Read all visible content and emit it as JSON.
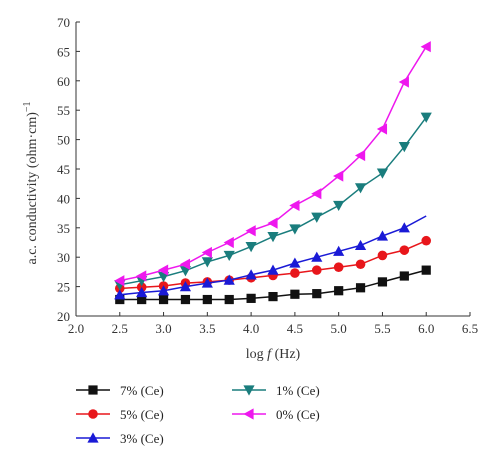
{
  "chart_data": {
    "type": "line",
    "x": [
      2.5,
      2.75,
      3.0,
      3.25,
      3.5,
      3.75,
      4.0,
      4.25,
      4.5,
      4.75,
      5.0,
      5.25,
      5.5,
      5.75,
      6.0
    ],
    "xlim": [
      2.0,
      6.5
    ],
    "ylim": [
      20,
      70
    ],
    "xticks": [
      "2.0",
      "2.5",
      "3.0",
      "3.5",
      "4.0",
      "4.5",
      "5.0",
      "5.5",
      "6.0",
      "6.5"
    ],
    "yticks": [
      "20",
      "25",
      "30",
      "35",
      "40",
      "45",
      "50",
      "55",
      "60",
      "65",
      "70"
    ],
    "xlabel_main": "log ",
    "xlabel_var": "f",
    "xlabel_unit": " (Hz)",
    "ylabel": "a.c. conductivity (ohm·cm)",
    "ylabel_sup": "−1",
    "grid": false,
    "legend_position": "bottom",
    "series": [
      {
        "name": "7% (Ce)",
        "color": "#111111",
        "marker": "square",
        "values": [
          22.8,
          22.8,
          22.8,
          22.8,
          22.8,
          22.8,
          23.0,
          23.3,
          23.7,
          23.8,
          24.3,
          24.8,
          25.8,
          26.8,
          27.8
        ]
      },
      {
        "name": "5% (Ce)",
        "color": "#e8161b",
        "marker": "circle",
        "values": [
          24.7,
          24.9,
          25.1,
          25.6,
          25.8,
          26.1,
          26.5,
          26.9,
          27.3,
          27.8,
          28.3,
          28.8,
          30.3,
          31.2,
          32.8
        ]
      },
      {
        "name": "3% (Ce)",
        "color": "#1a1ad6",
        "marker": "triangle-up",
        "values": [
          23.6,
          24.0,
          24.3,
          25.0,
          25.6,
          26.1,
          27.0,
          27.8,
          29.0,
          30.0,
          31.0,
          32.0,
          33.6,
          35.0,
          37.0
        ]
      },
      {
        "name": "1% (Ce)",
        "color": "#1a7d7d",
        "marker": "triangle-down",
        "values": [
          25.3,
          26.0,
          26.7,
          27.7,
          29.2,
          30.3,
          31.8,
          33.5,
          34.8,
          36.8,
          38.8,
          41.8,
          44.3,
          48.8,
          53.8
        ]
      },
      {
        "name": "0% (Ce)",
        "color": "#ee18ee",
        "marker": "triangle-left",
        "values": [
          26.0,
          26.8,
          27.8,
          28.8,
          30.8,
          32.5,
          34.5,
          35.8,
          38.8,
          40.8,
          43.8,
          47.3,
          51.8,
          59.8,
          65.8
        ]
      }
    ]
  }
}
